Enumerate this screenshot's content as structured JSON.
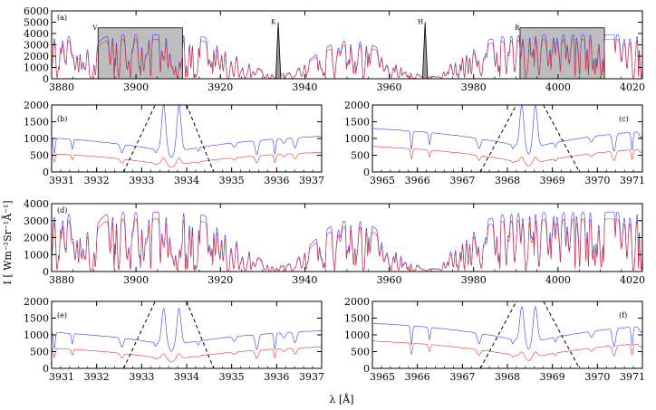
{
  "chart_data": {
    "type": "line",
    "ylabel": "I [ Wm⁻²Sr⁻¹Å⁻¹]",
    "xlabel": "λ [Å]",
    "series_colors": {
      "blue": "#3a3aee",
      "red": "#e83030"
    },
    "panels": [
      {
        "id": "a",
        "label": "(a)",
        "type": "line",
        "xlim": [
          3880,
          4020
        ],
        "ylim": [
          0,
          6000
        ],
        "xticks": [
          3880,
          3900,
          3920,
          3940,
          3960,
          3980,
          4000,
          4020
        ],
        "yticks": [
          0,
          1000,
          2000,
          3000,
          4000,
          5000,
          6000
        ],
        "shaded_regions": [
          {
            "name": "V",
            "x": [
              3891,
              3911
            ],
            "y": 4500
          },
          {
            "name": "R",
            "x": [
              3991,
              4011
            ],
            "y": 4500
          }
        ],
        "line_markers": [
          {
            "name": "K",
            "x": 3933.7,
            "peak": 5000,
            "halfwidth": 0.6
          },
          {
            "name": "H",
            "x": 3968.5,
            "peak": 5000,
            "halfwidth": 0.6
          }
        ],
        "series": [
          {
            "name": "blue",
            "continuum": 3900,
            "core_min": 500,
            "offset": 0
          },
          {
            "name": "red",
            "continuum": 3500,
            "core_min": 300,
            "offset": -1
          }
        ]
      },
      {
        "id": "b",
        "label": "(b)",
        "type": "line",
        "xlim": [
          3931,
          3937
        ],
        "ylim": [
          0,
          2000
        ],
        "xticks": [
          3931,
          3932,
          3933,
          3934,
          3935,
          3936,
          3937
        ],
        "yticks": [
          0,
          500,
          1000,
          1500,
          2000
        ],
        "filter_lines": [
          {
            "x": [
              3932.6,
              3933.3
            ]
          },
          {
            "x": [
              3934.0,
              3934.6
            ]
          }
        ],
        "series": [
          {
            "name": "blue",
            "continuum": 1200,
            "core_min": 580,
            "center": 3933.66,
            "emission_peak": 1950,
            "emission_sep": 0.17
          },
          {
            "name": "red",
            "continuum": 700,
            "core_min": 180,
            "center": 3933.66,
            "emission_peak": 380,
            "emission_sep": 0.17
          }
        ]
      },
      {
        "id": "c",
        "label": "(c)",
        "type": "line",
        "xlim": [
          3965,
          3971
        ],
        "ylim": [
          0,
          2000
        ],
        "xticks": [
          3965,
          3966,
          3967,
          3968,
          3969,
          3970,
          3971
        ],
        "yticks": [
          0,
          500,
          1000,
          1500,
          2000
        ],
        "filter_lines": [
          {
            "x": [
              3967.4,
              3968.2
            ]
          },
          {
            "x": [
              3968.8,
              3969.6
            ]
          }
        ],
        "series": [
          {
            "name": "blue",
            "continuum": 1450,
            "core_min": 700,
            "center": 3968.47,
            "emission_peak": 1950,
            "emission_sep": 0.15
          },
          {
            "name": "red",
            "continuum": 900,
            "core_min": 230,
            "center": 3968.47,
            "emission_peak": 400,
            "emission_sep": 0.15
          }
        ]
      },
      {
        "id": "d",
        "label": "(d)",
        "type": "line",
        "xlim": [
          3880,
          4020
        ],
        "ylim": [
          0,
          4000
        ],
        "xticks": [
          3880,
          3900,
          3920,
          3940,
          3960,
          3980,
          4000,
          4020
        ],
        "yticks": [
          0,
          1000,
          2000,
          3000,
          4000
        ],
        "series": [
          {
            "name": "blue",
            "continuum": 3500,
            "core_min": 400,
            "offset": 0
          },
          {
            "name": "red",
            "continuum": 3100,
            "core_min": 200,
            "offset": -1
          }
        ]
      },
      {
        "id": "e",
        "label": "(e)",
        "type": "line",
        "xlim": [
          3931,
          3937
        ],
        "ylim": [
          0,
          2000
        ],
        "xticks": [
          3931,
          3932,
          3933,
          3934,
          3935,
          3936,
          3937
        ],
        "yticks": [
          0,
          500,
          1000,
          1500,
          2000
        ],
        "filter_lines": [
          {
            "x": [
              3932.6,
              3933.3
            ]
          },
          {
            "x": [
              3934.0,
              3934.6
            ]
          }
        ],
        "series": [
          {
            "name": "blue",
            "continuum": 1250,
            "core_min": 680,
            "center": 3933.66,
            "emission_peak": 1750,
            "emission_sep": 0.17
          },
          {
            "name": "red",
            "continuum": 750,
            "core_min": 250,
            "center": 3933.66,
            "emission_peak": 400,
            "emission_sep": 0.17
          }
        ]
      },
      {
        "id": "f",
        "label": "(f)",
        "type": "line",
        "xlim": [
          3965,
          3971
        ],
        "ylim": [
          0,
          2000
        ],
        "xticks": [
          3965,
          3966,
          3967,
          3968,
          3969,
          3970,
          3971
        ],
        "yticks": [
          0,
          500,
          1000,
          1500,
          2000
        ],
        "filter_lines": [
          {
            "x": [
              3967.4,
              3968.2
            ]
          },
          {
            "x": [
              3968.8,
              3969.6
            ]
          }
        ],
        "series": [
          {
            "name": "blue",
            "continuum": 1500,
            "core_min": 750,
            "center": 3968.47,
            "emission_peak": 1800,
            "emission_sep": 0.15
          },
          {
            "name": "red",
            "continuum": 950,
            "core_min": 300,
            "center": 3968.47,
            "emission_peak": 450,
            "emission_sep": 0.15
          }
        ]
      }
    ]
  }
}
